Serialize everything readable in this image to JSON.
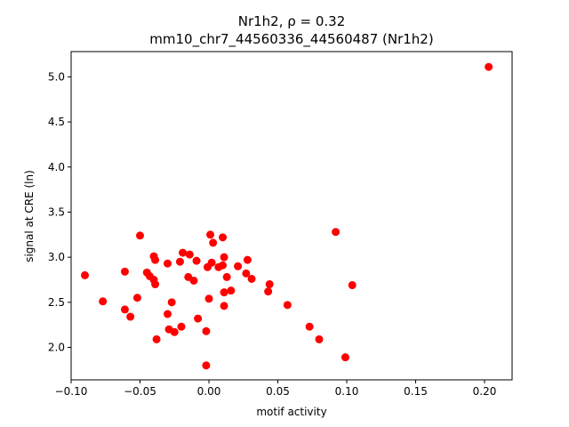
{
  "chart_data": {
    "type": "scatter",
    "title_line1": "Nr1h2, ρ = 0.32",
    "title_line2": "mm10_chr7_44560336_44560487 (Nr1h2)",
    "xlabel": "motif activity",
    "ylabel": "signal at CRE (ln)",
    "xlim": [
      -0.1,
      0.22
    ],
    "ylim": [
      1.64,
      5.28
    ],
    "xticks": [
      "−0.10",
      "−0.05",
      "0.00",
      "0.05",
      "0.10",
      "0.15",
      "0.20"
    ],
    "yticks": [
      "2.0",
      "2.5",
      "3.0",
      "3.5",
      "4.0",
      "4.5",
      "5.0"
    ],
    "grid": false,
    "marker_color": "#ff0000",
    "x": [
      -0.09,
      -0.077,
      -0.061,
      -0.061,
      -0.057,
      -0.052,
      -0.05,
      -0.045,
      -0.043,
      -0.04,
      -0.04,
      -0.039,
      -0.039,
      -0.038,
      -0.03,
      -0.03,
      -0.029,
      -0.027,
      -0.025,
      -0.021,
      -0.02,
      -0.019,
      -0.015,
      -0.014,
      -0.011,
      -0.009,
      -0.008,
      -0.002,
      -0.002,
      -0.001,
      0.0,
      0.001,
      0.002,
      0.003,
      0.007,
      0.01,
      0.01,
      0.011,
      0.011,
      0.011,
      0.013,
      0.016,
      0.021,
      0.027,
      0.028,
      0.031,
      0.043,
      0.044,
      0.057,
      0.073,
      0.08,
      0.092,
      0.099,
      0.104,
      0.203
    ],
    "y": [
      2.8,
      2.51,
      2.84,
      2.42,
      2.34,
      2.55,
      3.24,
      2.83,
      2.79,
      3.01,
      2.75,
      2.7,
      2.97,
      2.09,
      2.93,
      2.37,
      2.2,
      2.5,
      2.17,
      2.95,
      2.23,
      3.05,
      2.78,
      3.03,
      2.74,
      2.96,
      2.32,
      2.18,
      1.8,
      2.89,
      2.54,
      3.25,
      2.94,
      3.16,
      2.89,
      3.22,
      2.91,
      3.0,
      2.61,
      2.46,
      2.78,
      2.63,
      2.9,
      2.82,
      2.97,
      2.76,
      2.62,
      2.7,
      2.47,
      2.23,
      2.09,
      3.28,
      1.89,
      2.69,
      5.11
    ]
  }
}
